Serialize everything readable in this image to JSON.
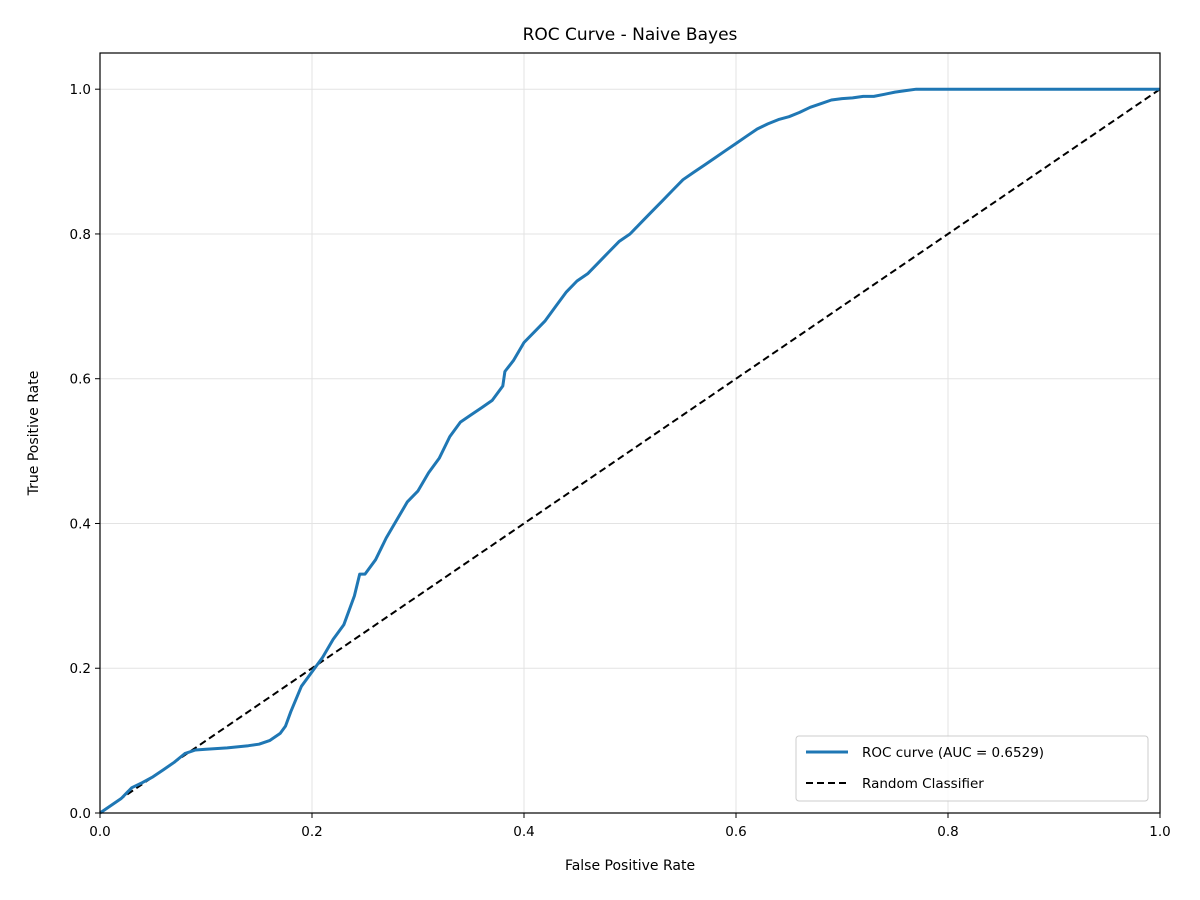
{
  "chart_data": {
    "type": "line",
    "title": "ROC Curve - Naive Bayes",
    "xlabel": "False Positive Rate",
    "ylabel": "True Positive Rate",
    "xlim": [
      0.0,
      1.0
    ],
    "ylim": [
      0.0,
      1.05
    ],
    "x_ticks": [
      "0.0",
      "0.2",
      "0.4",
      "0.6",
      "0.8",
      "1.0"
    ],
    "y_ticks": [
      "0.0",
      "0.2",
      "0.4",
      "0.6",
      "0.8",
      "1.0"
    ],
    "grid": true,
    "legend_position": "lower-right",
    "series": [
      {
        "name": "ROC curve (AUC = 0.6529)",
        "color": "#1f77b4",
        "style": "solid",
        "x": [
          0.0,
          0.01,
          0.02,
          0.03,
          0.04,
          0.05,
          0.06,
          0.07,
          0.08,
          0.09,
          0.1,
          0.12,
          0.14,
          0.15,
          0.16,
          0.17,
          0.175,
          0.18,
          0.19,
          0.2,
          0.21,
          0.22,
          0.23,
          0.24,
          0.245,
          0.25,
          0.26,
          0.27,
          0.28,
          0.29,
          0.3,
          0.31,
          0.32,
          0.33,
          0.34,
          0.35,
          0.36,
          0.37,
          0.38,
          0.382,
          0.39,
          0.4,
          0.41,
          0.42,
          0.43,
          0.44,
          0.45,
          0.46,
          0.47,
          0.48,
          0.49,
          0.5,
          0.51,
          0.52,
          0.53,
          0.54,
          0.55,
          0.56,
          0.57,
          0.58,
          0.59,
          0.6,
          0.61,
          0.62,
          0.63,
          0.64,
          0.65,
          0.66,
          0.67,
          0.68,
          0.69,
          0.7,
          0.71,
          0.72,
          0.73,
          0.74,
          0.75,
          0.76,
          0.77,
          0.78,
          0.79,
          0.8,
          0.85,
          0.9,
          0.95,
          1.0
        ],
        "y": [
          0.0,
          0.01,
          0.02,
          0.035,
          0.042,
          0.05,
          0.06,
          0.07,
          0.082,
          0.087,
          0.088,
          0.09,
          0.093,
          0.095,
          0.1,
          0.11,
          0.12,
          0.14,
          0.175,
          0.195,
          0.215,
          0.24,
          0.26,
          0.3,
          0.33,
          0.33,
          0.35,
          0.38,
          0.405,
          0.43,
          0.445,
          0.47,
          0.49,
          0.52,
          0.54,
          0.55,
          0.56,
          0.57,
          0.59,
          0.61,
          0.625,
          0.65,
          0.665,
          0.68,
          0.7,
          0.72,
          0.735,
          0.745,
          0.76,
          0.775,
          0.79,
          0.8,
          0.815,
          0.83,
          0.845,
          0.86,
          0.875,
          0.885,
          0.895,
          0.905,
          0.915,
          0.925,
          0.935,
          0.945,
          0.952,
          0.958,
          0.962,
          0.968,
          0.975,
          0.98,
          0.985,
          0.987,
          0.988,
          0.99,
          0.99,
          0.993,
          0.996,
          0.998,
          1.0,
          1.0,
          1.0,
          1.0,
          1.0,
          1.0,
          1.0,
          1.0
        ]
      },
      {
        "name": "Random Classifier",
        "color": "#000000",
        "style": "dashed",
        "x": [
          0.0,
          1.0
        ],
        "y": [
          0.0,
          1.0
        ]
      }
    ]
  }
}
